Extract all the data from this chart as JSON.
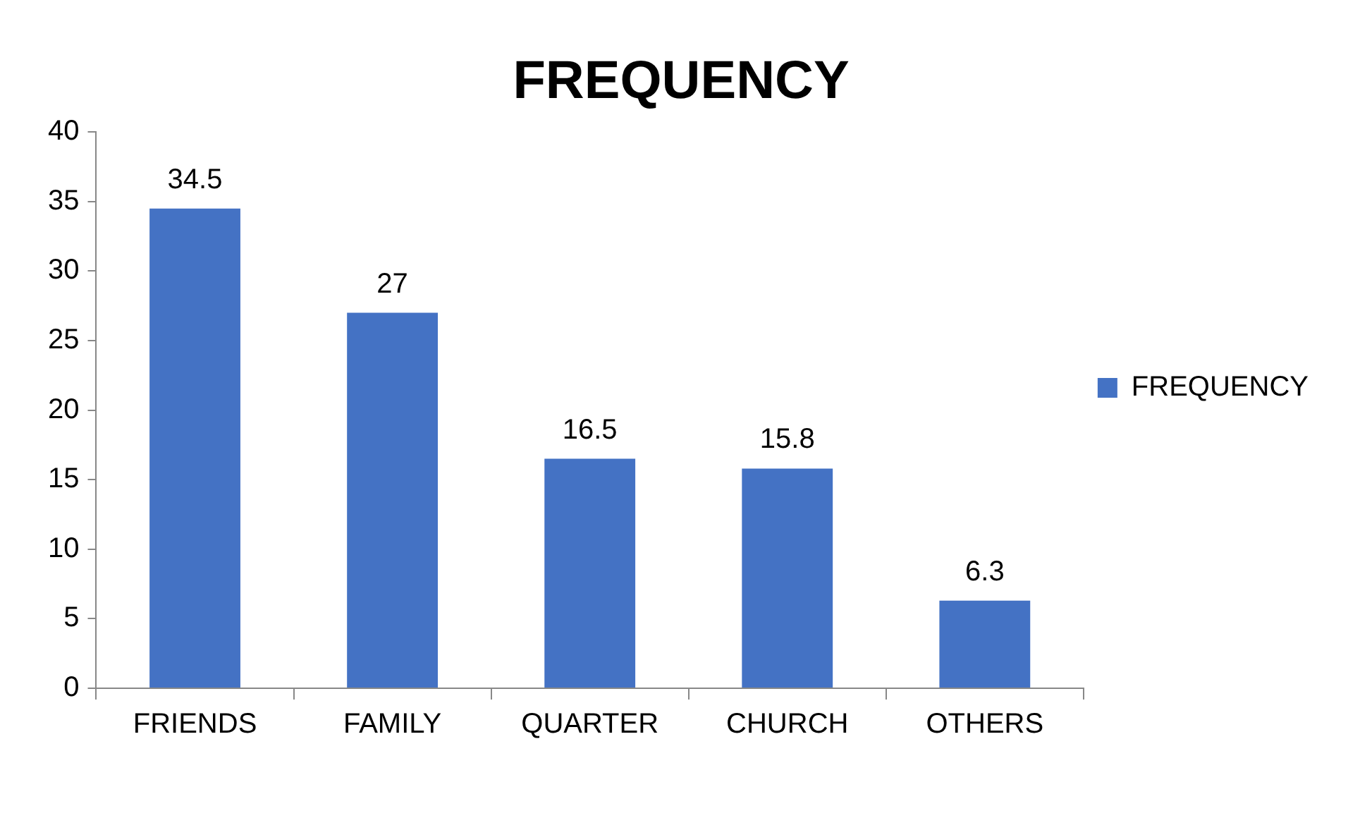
{
  "chart_data": {
    "type": "bar",
    "title": "FREQUENCY",
    "categories": [
      "FRIENDS",
      "FAMILY",
      "QUARTER",
      "CHURCH",
      "OTHERS"
    ],
    "series": [
      {
        "name": "FREQUENCY",
        "color": "#4472c4",
        "values": [
          34.5,
          27,
          16.5,
          15.8,
          6.3
        ]
      }
    ],
    "ylim": [
      0,
      40
    ],
    "yticks": [
      0,
      5,
      10,
      15,
      20,
      25,
      30,
      35,
      40
    ],
    "grid": false,
    "legend": "right",
    "data_labels": true
  }
}
